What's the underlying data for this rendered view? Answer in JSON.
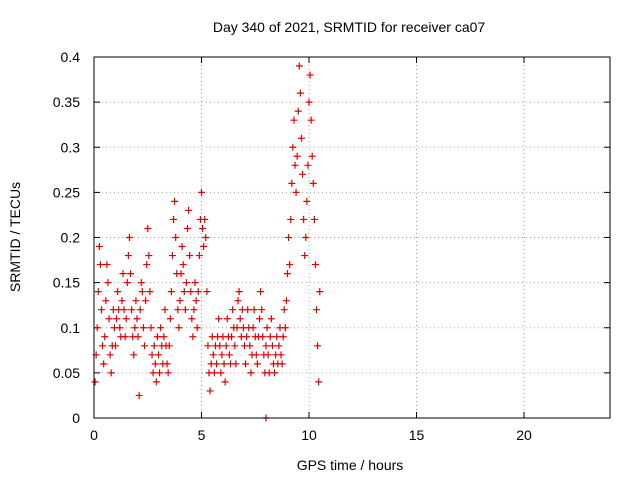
{
  "chart_data": {
    "type": "scatter",
    "title": "Day 340 of 2021, SRMTID for receiver ca07",
    "xlabel": "GPS time / hours",
    "ylabel": "SRMTID / TECUs",
    "xlim": [
      0,
      24
    ],
    "ylim": [
      0,
      0.4
    ],
    "x_ticks": [
      0,
      5,
      10,
      15,
      20
    ],
    "x_tick_labels": [
      "0",
      "5",
      "10",
      "15",
      "20"
    ],
    "y_ticks": [
      0,
      0.05,
      0.1,
      0.15,
      0.2,
      0.25,
      0.3,
      0.35,
      0.4
    ],
    "y_tick_labels": [
      "0",
      "0.05",
      "0.1",
      "0.15",
      "0.2",
      "0.25",
      "0.3",
      "0.35",
      "0.4"
    ],
    "grid": true,
    "marker": "plus",
    "color": "#e00000",
    "series": [
      {
        "name": "SRMTID",
        "points": [
          [
            0.05,
            0.04
          ],
          [
            0.1,
            0.07
          ],
          [
            0.15,
            0.1
          ],
          [
            0.2,
            0.14
          ],
          [
            0.25,
            0.19
          ],
          [
            0.3,
            0.17
          ],
          [
            0.35,
            0.12
          ],
          [
            0.4,
            0.08
          ],
          [
            0.45,
            0.06
          ],
          [
            0.5,
            0.09
          ],
          [
            0.55,
            0.13
          ],
          [
            0.6,
            0.17
          ],
          [
            0.65,
            0.15
          ],
          [
            0.7,
            0.11
          ],
          [
            0.75,
            0.07
          ],
          [
            0.8,
            0.05
          ],
          [
            0.85,
            0.08
          ],
          [
            0.9,
            0.12
          ],
          [
            0.95,
            0.1
          ],
          [
            1.0,
            0.08
          ],
          [
            1.05,
            0.11
          ],
          [
            1.1,
            0.14
          ],
          [
            1.15,
            0.12
          ],
          [
            1.2,
            0.1
          ],
          [
            1.25,
            0.09
          ],
          [
            1.3,
            0.13
          ],
          [
            1.35,
            0.16
          ],
          [
            1.4,
            0.12
          ],
          [
            1.45,
            0.09
          ],
          [
            1.5,
            0.11
          ],
          [
            1.55,
            0.15
          ],
          [
            1.6,
            0.18
          ],
          [
            1.65,
            0.2
          ],
          [
            1.7,
            0.16
          ],
          [
            1.75,
            0.12
          ],
          [
            1.8,
            0.09
          ],
          [
            1.85,
            0.07
          ],
          [
            1.9,
            0.1
          ],
          [
            1.95,
            0.13
          ],
          [
            2.0,
            0.11
          ],
          [
            2.05,
            0.09
          ],
          [
            2.1,
            0.025
          ],
          [
            2.15,
            0.12
          ],
          [
            2.2,
            0.15
          ],
          [
            2.25,
            0.14
          ],
          [
            2.3,
            0.1
          ],
          [
            2.35,
            0.08
          ],
          [
            2.4,
            0.13
          ],
          [
            2.45,
            0.17
          ],
          [
            2.5,
            0.21
          ],
          [
            2.55,
            0.18
          ],
          [
            2.6,
            0.14
          ],
          [
            2.65,
            0.1
          ],
          [
            2.7,
            0.07
          ],
          [
            2.75,
            0.05
          ],
          [
            2.8,
            0.08
          ],
          [
            2.85,
            0.06
          ],
          [
            2.9,
            0.04
          ],
          [
            2.95,
            0.09
          ],
          [
            3.0,
            0.07
          ],
          [
            3.05,
            0.05
          ],
          [
            3.1,
            0.1
          ],
          [
            3.15,
            0.08
          ],
          [
            3.2,
            0.06
          ],
          [
            3.25,
            0.09
          ],
          [
            3.3,
            0.12
          ],
          [
            3.35,
            0.08
          ],
          [
            3.4,
            0.06
          ],
          [
            3.45,
            0.05
          ],
          [
            3.5,
            0.08
          ],
          [
            3.55,
            0.11
          ],
          [
            3.6,
            0.14
          ],
          [
            3.65,
            0.18
          ],
          [
            3.7,
            0.22
          ],
          [
            3.75,
            0.24
          ],
          [
            3.8,
            0.2
          ],
          [
            3.85,
            0.16
          ],
          [
            3.9,
            0.12
          ],
          [
            3.95,
            0.1
          ],
          [
            4.0,
            0.13
          ],
          [
            4.05,
            0.16
          ],
          [
            4.1,
            0.19
          ],
          [
            4.15,
            0.17
          ],
          [
            4.2,
            0.14
          ],
          [
            4.25,
            0.12
          ],
          [
            4.3,
            0.15
          ],
          [
            4.35,
            0.21
          ],
          [
            4.4,
            0.23
          ],
          [
            4.45,
            0.18
          ],
          [
            4.5,
            0.14
          ],
          [
            4.55,
            0.11
          ],
          [
            4.6,
            0.09
          ],
          [
            4.65,
            0.12
          ],
          [
            4.7,
            0.15
          ],
          [
            4.75,
            0.13
          ],
          [
            4.8,
            0.1
          ],
          [
            4.85,
            0.14
          ],
          [
            4.9,
            0.18
          ],
          [
            4.95,
            0.22
          ],
          [
            5.0,
            0.25
          ],
          [
            5.05,
            0.21
          ],
          [
            5.1,
            0.19
          ],
          [
            5.15,
            0.22
          ],
          [
            5.2,
            0.2
          ],
          [
            5.25,
            0.14
          ],
          [
            5.3,
            0.08
          ],
          [
            5.35,
            0.05
          ],
          [
            5.4,
            0.03
          ],
          [
            5.45,
            0.06
          ],
          [
            5.5,
            0.09
          ],
          [
            5.55,
            0.07
          ],
          [
            5.6,
            0.05
          ],
          [
            5.65,
            0.08
          ],
          [
            5.7,
            0.06
          ],
          [
            5.75,
            0.09
          ],
          [
            5.8,
            0.11
          ],
          [
            5.85,
            0.08
          ],
          [
            5.9,
            0.05
          ],
          [
            5.95,
            0.07
          ],
          [
            6.0,
            0.09
          ],
          [
            6.05,
            0.06
          ],
          [
            6.1,
            0.04
          ],
          [
            6.15,
            0.08
          ],
          [
            6.2,
            0.11
          ],
          [
            6.25,
            0.09
          ],
          [
            6.3,
            0.07
          ],
          [
            6.35,
            0.06
          ],
          [
            6.4,
            0.09
          ],
          [
            6.45,
            0.12
          ],
          [
            6.5,
            0.1
          ],
          [
            6.55,
            0.08
          ],
          [
            6.6,
            0.06
          ],
          [
            6.65,
            0.1
          ],
          [
            6.7,
            0.13
          ],
          [
            6.75,
            0.14
          ],
          [
            6.8,
            0.11
          ],
          [
            6.85,
            0.09
          ],
          [
            6.9,
            0.12
          ],
          [
            6.95,
            0.1
          ],
          [
            7.0,
            0.08
          ],
          [
            7.05,
            0.06
          ],
          [
            7.1,
            0.09
          ],
          [
            7.15,
            0.12
          ],
          [
            7.2,
            0.1
          ],
          [
            7.25,
            0.08
          ],
          [
            7.3,
            0.05
          ],
          [
            7.35,
            0.07
          ],
          [
            7.4,
            0.1
          ],
          [
            7.45,
            0.12
          ],
          [
            7.5,
            0.09
          ],
          [
            7.55,
            0.07
          ],
          [
            7.6,
            0.06
          ],
          [
            7.65,
            0.09
          ],
          [
            7.7,
            0.11
          ],
          [
            7.75,
            0.14
          ],
          [
            7.8,
            0.12
          ],
          [
            7.85,
            0.09
          ],
          [
            7.9,
            0.07
          ],
          [
            7.95,
            0.05
          ],
          [
            8.0,
            0.08
          ],
          [
            8.05,
            0.1
          ],
          [
            8.1,
            0.07
          ],
          [
            8.15,
            0.05
          ],
          [
            8.2,
            0.09
          ],
          [
            8.25,
            0.11
          ],
          [
            8.3,
            0.08
          ],
          [
            8.35,
            0.06
          ],
          [
            8.4,
            0.05
          ],
          [
            8.45,
            0.07
          ],
          [
            8.5,
            0.09
          ],
          [
            8.55,
            0.06
          ],
          [
            8.6,
            0.08
          ],
          [
            8.65,
            0.1
          ],
          [
            8.7,
            0.07
          ],
          [
            8.75,
            0.06
          ],
          [
            8.8,
            0.09
          ],
          [
            8.85,
            0.12
          ],
          [
            8.9,
            0.1
          ],
          [
            8.95,
            0.13
          ],
          [
            9.0,
            0.16
          ],
          [
            9.05,
            0.2
          ],
          [
            9.1,
            0.17
          ],
          [
            9.15,
            0.22
          ],
          [
            9.2,
            0.26
          ],
          [
            9.25,
            0.3
          ],
          [
            9.3,
            0.33
          ],
          [
            9.35,
            0.28
          ],
          [
            9.4,
            0.25
          ],
          [
            9.45,
            0.29
          ],
          [
            9.5,
            0.34
          ],
          [
            9.55,
            0.39
          ],
          [
            9.6,
            0.36
          ],
          [
            9.65,
            0.31
          ],
          [
            9.7,
            0.27
          ],
          [
            9.75,
            0.22
          ],
          [
            9.8,
            0.18
          ],
          [
            9.85,
            0.2
          ],
          [
            9.9,
            0.24
          ],
          [
            9.95,
            0.28
          ],
          [
            10.0,
            0.35
          ],
          [
            10.05,
            0.38
          ],
          [
            10.1,
            0.33
          ],
          [
            10.15,
            0.29
          ],
          [
            10.2,
            0.26
          ],
          [
            10.25,
            0.22
          ],
          [
            10.3,
            0.17
          ],
          [
            10.35,
            0.12
          ],
          [
            10.4,
            0.08
          ],
          [
            10.45,
            0.04
          ],
          [
            10.5,
            0.14
          ],
          [
            8.0,
            0.0
          ]
        ]
      }
    ]
  }
}
